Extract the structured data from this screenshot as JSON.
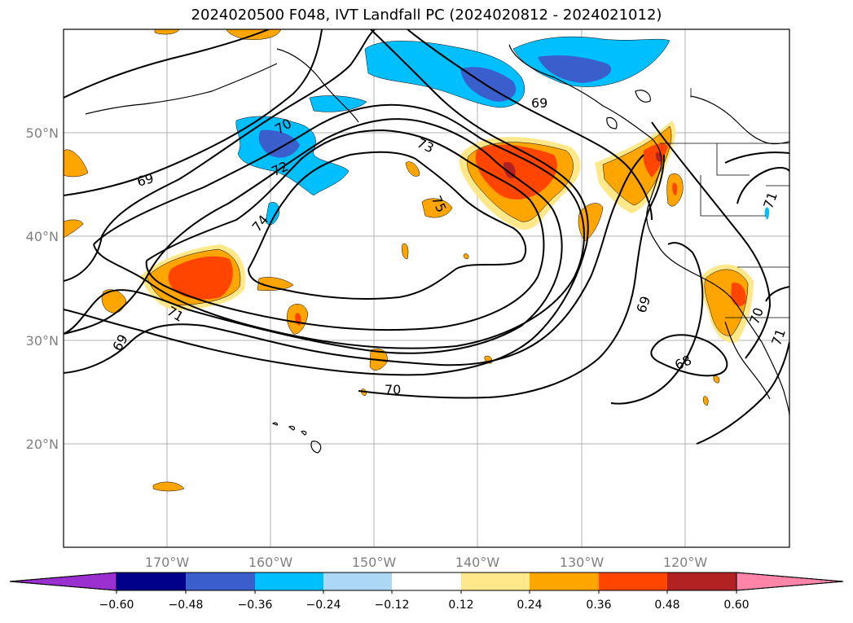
{
  "title": "2024020500 F048, IVT Landfall PC (2024020812 - 2024021012)",
  "lat_labels": [
    "50°N",
    "40°N",
    "30°N",
    "20°N"
  ],
  "lon_labels": [
    "170°W",
    "160°W",
    "150°W",
    "140°W",
    "130°W",
    "120°W"
  ],
  "contour_labels": [
    "70",
    "69",
    "72",
    "74",
    "73",
    "75",
    "69",
    "71",
    "69",
    "70",
    "69",
    "68",
    "70",
    "71",
    "71"
  ],
  "colorbar": {
    "ticks": [
      "−0.60",
      "−0.48",
      "−0.36",
      "−0.24",
      "−0.12",
      "0.12",
      "0.24",
      "0.36",
      "0.48",
      "0.60"
    ],
    "colors": [
      "#9b30d0",
      "#00008b",
      "#3a5fcd",
      "#00bfff",
      "#add8f5",
      "#ffffff",
      "#ffe88a",
      "#ffa500",
      "#ff4500",
      "#b22222",
      "#ff85a8"
    ]
  }
}
